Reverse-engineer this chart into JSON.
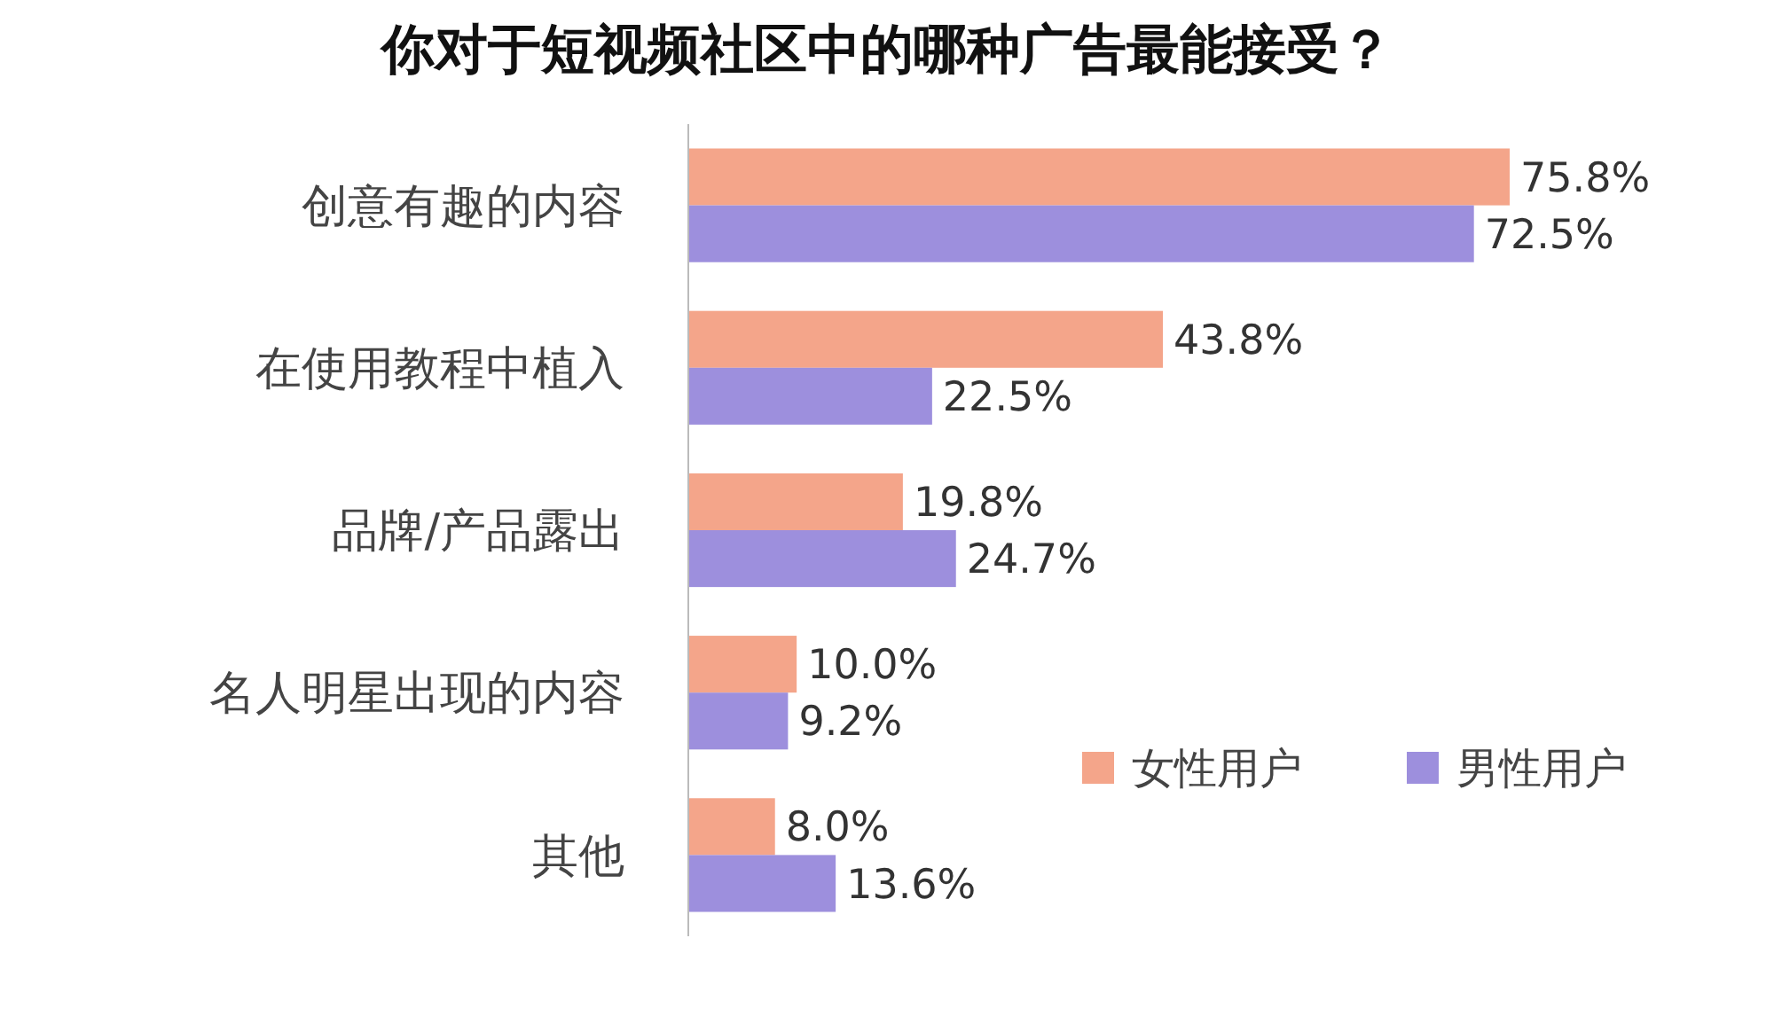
{
  "chart_data": {
    "type": "bar",
    "orientation": "horizontal",
    "title": "你对于短视频社区中的哪种广告最能接受？",
    "categories": [
      "创意有趣的内容",
      "在使用教程中植入",
      "品牌/产品露出",
      "名人明星出现的内容",
      "其他"
    ],
    "series": [
      {
        "name": "女性用户",
        "color": "#f4a58a",
        "values": [
          75.8,
          43.8,
          19.8,
          10.0,
          8.0
        ],
        "value_labels": [
          "75.8%",
          "43.8%",
          "19.8%",
          "10.0%",
          "8.0%"
        ]
      },
      {
        "name": "男性用户",
        "color": "#9d8fdd",
        "values": [
          72.5,
          22.5,
          24.7,
          9.2,
          13.6
        ],
        "value_labels": [
          "72.5%",
          "22.5%",
          "24.7%",
          "9.2%",
          "13.6%"
        ]
      }
    ],
    "legend": "bottom right",
    "grid": false
  }
}
